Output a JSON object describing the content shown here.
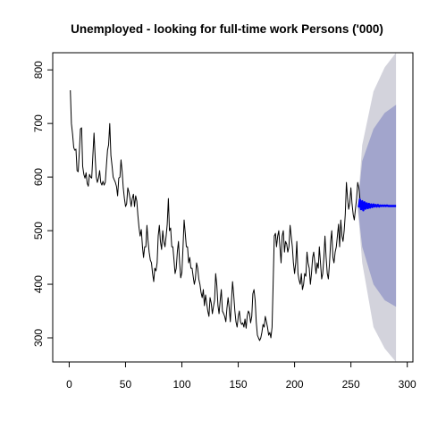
{
  "chart_data": {
    "type": "line",
    "title": "Unemployed - looking for full-time work Persons ('000)",
    "xlabel": "",
    "ylabel": "",
    "xlim": [
      -14.6,
      305
    ],
    "ylim": [
      255,
      832
    ],
    "x_ticks": [
      0,
      50,
      100,
      150,
      200,
      250,
      300
    ],
    "y_ticks": [
      300,
      400,
      500,
      600,
      700,
      800
    ],
    "grid": false,
    "legend": "none",
    "series": [
      {
        "role": "observed",
        "color": "#000000",
        "x_start": 1,
        "values": [
          762,
          700,
          680,
          655,
          650,
          652,
          612,
          610,
          648,
          690,
          692,
          620,
          605,
          598,
          608,
          588,
          583,
          605,
          600,
          598,
          640,
          682,
          640,
          600,
          590,
          598,
          612,
          590,
          585,
          592,
          585,
          590,
          620,
          650,
          660,
          700,
          640,
          622,
          600,
          595,
          590,
          582,
          565,
          598,
          600,
          632,
          610,
          580,
          560,
          545,
          550,
          580,
          572,
          560,
          545,
          560,
          568,
          545,
          565,
          555,
          528,
          505,
          490,
          502,
          470,
          450,
          470,
          470,
          510,
          480,
          460,
          445,
          440,
          420,
          405,
          430,
          425,
          440,
          490,
          510,
          480,
          465,
          500,
          480,
          470,
          490,
          512,
          560,
          500,
          505,
          470,
          470,
          445,
          420,
          430,
          462,
          480,
          440,
          412,
          422,
          470,
          520,
          495,
          470,
          470,
          440,
          450,
          430,
          430,
          415,
          400,
          410,
          440,
          430,
          410,
          400,
          385,
          375,
          390,
          360,
          380,
          365,
          350,
          340,
          375,
          365,
          345,
          358,
          370,
          420,
          398,
          360,
          345,
          370,
          390,
          350,
          345,
          340,
          330,
          355,
          375,
          355,
          330,
          370,
          405,
          380,
          350,
          330,
          320,
          340,
          350,
          330,
          325,
          328,
          320,
          335,
          318,
          340,
          350,
          345,
          328,
          340,
          382,
          390,
          370,
          330,
          305,
          300,
          295,
          300,
          310,
          325,
          320,
          340,
          330,
          320,
          305,
          310,
          300,
          320,
          400,
          490,
          495,
          470,
          490,
          500,
          470,
          440,
          490,
          500,
          460,
          480,
          475,
          460,
          470,
          510,
          490,
          470,
          440,
          420,
          440,
          480,
          420,
          408,
          400,
          420,
          390,
          400,
          420,
          415,
          460,
          440,
          430,
          400,
          420,
          450,
          460,
          440,
          420,
          440,
          430,
          470,
          440,
          410,
          420,
          450,
          490,
          450,
          420,
          410,
          440,
          480,
          500,
          450,
          440,
          460,
          470,
          490,
          512,
          470,
          520,
          490,
          480,
          500,
          530,
          590,
          560,
          540,
          552,
          580,
          550,
          530,
          520,
          540,
          560,
          590,
          580,
          560
        ]
      },
      {
        "role": "forecast",
        "color": "#0000ff",
        "x_start": 257,
        "values": [
          545,
          558,
          540,
          555,
          538,
          553,
          541,
          551,
          542,
          550,
          543,
          549,
          544,
          549,
          545,
          548,
          545,
          548,
          545,
          547,
          546,
          547,
          546,
          547,
          546,
          547,
          546,
          546,
          546,
          546,
          546,
          546,
          546,
          546
        ]
      }
    ],
    "intervals": [
      {
        "level": "95%",
        "color": "#d3d3dc",
        "x": [
          256,
          260,
          270,
          280,
          290
        ],
        "lower": [
          545,
          440,
          320,
          280,
          255
        ],
        "upper": [
          545,
          660,
          760,
          805,
          832
        ]
      },
      {
        "level": "80%",
        "color": "#a2a5cc",
        "x": [
          256,
          260,
          270,
          280,
          290
        ],
        "lower": [
          545,
          470,
          400,
          370,
          358
        ],
        "upper": [
          545,
          630,
          690,
          720,
          735
        ]
      }
    ]
  }
}
